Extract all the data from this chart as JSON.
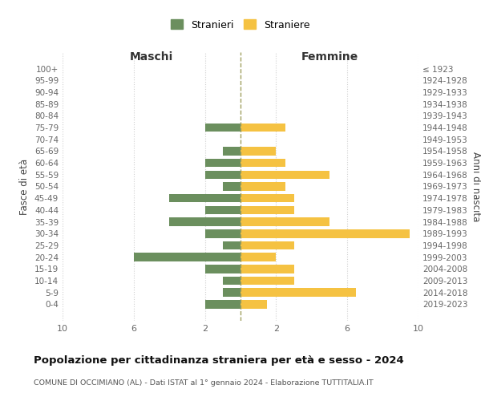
{
  "age_groups": [
    "100+",
    "95-99",
    "90-94",
    "85-89",
    "80-84",
    "75-79",
    "70-74",
    "65-69",
    "60-64",
    "55-59",
    "50-54",
    "45-49",
    "40-44",
    "35-39",
    "30-34",
    "25-29",
    "20-24",
    "15-19",
    "10-14",
    "5-9",
    "0-4"
  ],
  "birth_years": [
    "≤ 1923",
    "1924-1928",
    "1929-1933",
    "1934-1938",
    "1939-1943",
    "1944-1948",
    "1949-1953",
    "1954-1958",
    "1959-1963",
    "1964-1968",
    "1969-1973",
    "1974-1978",
    "1979-1983",
    "1984-1988",
    "1989-1993",
    "1994-1998",
    "1999-2003",
    "2004-2008",
    "2009-2013",
    "2014-2018",
    "2019-2023"
  ],
  "males": [
    0,
    0,
    0,
    0,
    0,
    2,
    0,
    1,
    2,
    2,
    1,
    4,
    2,
    4,
    2,
    1,
    6,
    2,
    1,
    1,
    2
  ],
  "females": [
    0,
    0,
    0,
    0,
    0,
    2.5,
    0,
    2,
    2.5,
    5,
    2.5,
    3,
    3,
    5,
    9.5,
    3,
    2,
    3,
    3,
    6.5,
    1.5
  ],
  "male_color": "#6b8f5e",
  "female_color": "#f5c242",
  "title": "Popolazione per cittadinanza straniera per età e sesso - 2024",
  "subtitle": "COMUNE DI OCCIMIANO (AL) - Dati ISTAT al 1° gennaio 2024 - Elaborazione TUTTITALIA.IT",
  "header_left": "Maschi",
  "header_right": "Femmine",
  "ylabel_left": "Fasce di età",
  "ylabel_right": "Anni di nascita",
  "legend_male": "Stranieri",
  "legend_female": "Straniere",
  "xlim": 10,
  "background_color": "#ffffff",
  "grid_color": "#d0d0d0",
  "dashed_line_color": "#a0a060"
}
